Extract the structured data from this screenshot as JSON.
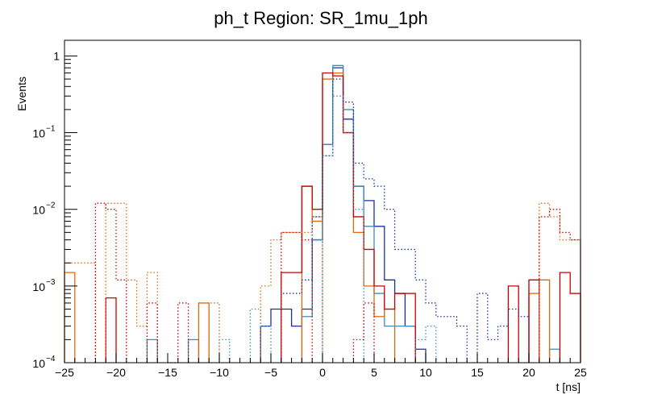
{
  "chart_data": {
    "type": "histogram",
    "title": "ph_t Region: SR_1mu_1ph",
    "xlabel": "t [ns]",
    "ylabel": "Events",
    "xlim": [
      -25,
      25
    ],
    "ylim": [
      0.0001,
      1.6
    ],
    "yscale": "log",
    "bin_width": 1,
    "x_ticks": [
      {
        "value": -25,
        "label": "−25"
      },
      {
        "value": -20,
        "label": "−20"
      },
      {
        "value": -15,
        "label": "−15"
      },
      {
        "value": -10,
        "label": "−10"
      },
      {
        "value": -5,
        "label": "−5"
      },
      {
        "value": 0,
        "label": "0"
      },
      {
        "value": 5,
        "label": "5"
      },
      {
        "value": 10,
        "label": "10"
      },
      {
        "value": 15,
        "label": "15"
      },
      {
        "value": 20,
        "label": "20"
      },
      {
        "value": 25,
        "label": "25"
      }
    ],
    "y_ticks": [
      {
        "value": 0.0001,
        "base": "10",
        "exp": "−4"
      },
      {
        "value": 0.001,
        "base": "10",
        "exp": "−3"
      },
      {
        "value": 0.01,
        "base": "10",
        "exp": "−2"
      },
      {
        "value": 0.1,
        "base": "10",
        "exp": "−1"
      },
      {
        "value": 1,
        "label": "1"
      }
    ],
    "series": [
      {
        "name": "solid-blue",
        "color": "#1a2fa0",
        "style": "solid",
        "bins": [
          [
            -6,
            0.0003
          ],
          [
            -5,
            0.0005
          ],
          [
            -4,
            0.0005
          ],
          [
            -3,
            0.0003
          ],
          [
            -2,
            0.0005
          ],
          [
            -1,
            0.004
          ],
          [
            0,
            0.07
          ],
          [
            1,
            0.7
          ],
          [
            2,
            0.15
          ],
          [
            3,
            0.02
          ],
          [
            4,
            0.013
          ],
          [
            5,
            0.006
          ],
          [
            6,
            0.0012
          ],
          [
            7,
            0.0008
          ],
          [
            8,
            0.0003
          ],
          [
            9,
            0.00015
          ]
        ]
      },
      {
        "name": "solid-teal",
        "color": "#3a8fb7",
        "style": "solid",
        "bins": [
          [
            -17,
            0.0002
          ],
          [
            -13,
            0.0002
          ],
          [
            -2,
            0.0004
          ],
          [
            -1,
            0.004
          ],
          [
            0,
            0.07
          ],
          [
            1,
            0.75
          ],
          [
            2,
            0.2
          ],
          [
            3,
            0.02
          ],
          [
            4,
            0.006
          ],
          [
            5,
            0.0008
          ],
          [
            6,
            0.0003
          ],
          [
            7,
            0.0003
          ],
          [
            8,
            0.0003
          ],
          [
            22,
            0.00015
          ]
        ]
      },
      {
        "name": "solid-orange",
        "color": "#e06a10",
        "style": "solid",
        "bins": [
          [
            -25,
            0.0015
          ],
          [
            -12,
            0.0006
          ],
          [
            -2,
            0.02
          ],
          [
            -1,
            0.007
          ],
          [
            0,
            0.5
          ],
          [
            1,
            0.6
          ],
          [
            2,
            0.1
          ],
          [
            3,
            0.005
          ],
          [
            4,
            0.001
          ],
          [
            5,
            0.0004
          ],
          [
            6,
            0.0005
          ],
          [
            20,
            0.0008
          ],
          [
            21,
            0.0012
          ]
        ]
      },
      {
        "name": "solid-red",
        "color": "#cc0000",
        "style": "solid",
        "bins": [
          [
            -21,
            0.0007
          ],
          [
            -4,
            0.0015
          ],
          [
            -3,
            0.0015
          ],
          [
            -2,
            0.02
          ],
          [
            -1,
            0.01
          ],
          [
            0,
            0.6
          ],
          [
            1,
            0.55
          ],
          [
            2,
            0.1
          ],
          [
            3,
            0.008
          ],
          [
            4,
            0.003
          ],
          [
            5,
            0.001
          ],
          [
            6,
            0.0005
          ],
          [
            7,
            0.0008
          ],
          [
            8,
            0.0008
          ],
          [
            18,
            0.001
          ],
          [
            20,
            0.0012
          ],
          [
            23,
            0.0015
          ],
          [
            24,
            0.0008
          ]
        ]
      },
      {
        "name": "dotted-navy",
        "color": "#1a2fa0",
        "style": "dotted",
        "bins": [
          [
            -4,
            0.0008
          ],
          [
            -3,
            0.0008
          ],
          [
            -2,
            0.0012
          ],
          [
            -1,
            0.008
          ],
          [
            0,
            0.05
          ],
          [
            1,
            0.5
          ],
          [
            2,
            0.25
          ],
          [
            3,
            0.04
          ],
          [
            4,
            0.025
          ],
          [
            5,
            0.02
          ],
          [
            6,
            0.01
          ],
          [
            7,
            0.003
          ],
          [
            8,
            0.003
          ],
          [
            9,
            0.0012
          ],
          [
            10,
            0.0006
          ],
          [
            11,
            0.0004
          ],
          [
            12,
            0.0004
          ],
          [
            13,
            0.0003
          ],
          [
            15,
            0.0008
          ],
          [
            16,
            0.0002
          ],
          [
            17,
            0.0003
          ],
          [
            18,
            0.0005
          ],
          [
            19,
            0.0004
          ]
        ]
      },
      {
        "name": "dotted-teal",
        "color": "#3a8fb7",
        "style": "dotted",
        "bins": [
          [
            -10,
            0.0002
          ],
          [
            -7,
            0.0005
          ],
          [
            -6,
            0.0003
          ],
          [
            0,
            0.05
          ],
          [
            1,
            0.3
          ],
          [
            2,
            0.1
          ],
          [
            3,
            0.01
          ],
          [
            9,
            0.0002
          ],
          [
            10,
            0.0003
          ],
          [
            12,
            0.0001
          ]
        ]
      },
      {
        "name": "dotted-orange",
        "color": "#e06a10",
        "style": "dotted",
        "bins": [
          [
            -25,
            0.002
          ],
          [
            -24,
            0.002
          ],
          [
            -23,
            0.002
          ],
          [
            -21,
            0.012
          ],
          [
            -20,
            0.012
          ],
          [
            -19,
            0.0012
          ],
          [
            -18,
            0.0003
          ],
          [
            -17,
            0.0015
          ],
          [
            -11,
            0.0006
          ],
          [
            -6,
            0.001
          ],
          [
            -5,
            0.004
          ],
          [
            -4,
            0.005
          ],
          [
            -3,
            0.005
          ],
          [
            -2,
            0.005
          ],
          [
            -1,
            0.008
          ],
          [
            21,
            0.012
          ],
          [
            22,
            0.008
          ],
          [
            23,
            0.004
          ],
          [
            24,
            0.004
          ]
        ]
      },
      {
        "name": "dotted-red",
        "color": "#cc0000",
        "style": "dotted",
        "bins": [
          [
            -22,
            0.012
          ],
          [
            -21,
            0.01
          ],
          [
            -20,
            0.0012
          ],
          [
            -17,
            0.0006
          ],
          [
            -15,
            0.0001
          ],
          [
            -14,
            0.0006
          ],
          [
            -4,
            0.005
          ],
          [
            -3,
            0.005
          ],
          [
            -2,
            0.004
          ],
          [
            3,
            0.0002
          ],
          [
            4,
            0.0006
          ],
          [
            20,
            0.0012
          ],
          [
            21,
            0.008
          ],
          [
            22,
            0.01
          ],
          [
            23,
            0.005
          ],
          [
            24,
            0.004
          ]
        ]
      }
    ]
  }
}
